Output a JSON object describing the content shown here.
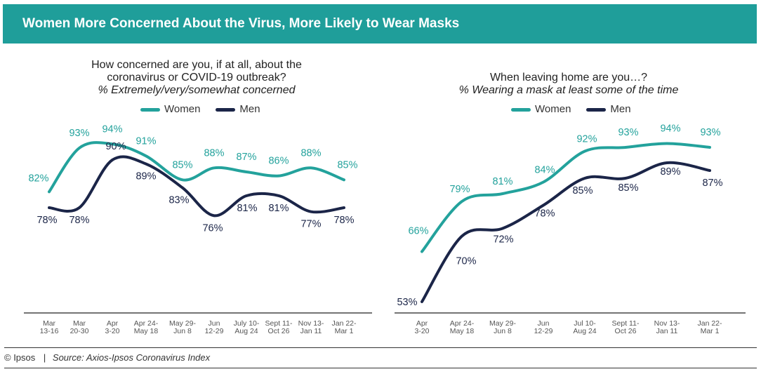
{
  "title": "Women More Concerned About the Virus, More Likely to Wear Masks",
  "footer": {
    "copyright": "© Ipsos",
    "separator": "|",
    "source": "Source: Axios-Ipsos Coronavirus Index"
  },
  "colors": {
    "women": "#23a29c",
    "men": "#1b2548",
    "banner": "#1f9e9a"
  },
  "chart_data": [
    {
      "type": "line",
      "title": "How concerned are you, if at all, about the coronavirus or COVID-19 outbreak?",
      "subtitle": "% Extremely/very/somewhat concerned",
      "title_line1": "How concerned are you, if at all, about the",
      "title_line2": "coronavirus or COVID-19 outbreak?",
      "categories": [
        "Mar 13-16",
        "Mar 20-30",
        "Apr 3-20",
        "Apr 24- May 18",
        "May 29- Jun 8",
        "Jun 12-29",
        "July 10- Aug 24",
        "Sept 11- Oct 26",
        "Nov 13- Jan 11",
        "Jan 22- Mar 1"
      ],
      "cat_lines": [
        [
          "Mar",
          "13-16"
        ],
        [
          "Mar",
          "20-30"
        ],
        [
          "Apr",
          "3-20"
        ],
        [
          "Apr 24-",
          "May 18"
        ],
        [
          "May 29-",
          "Jun 8"
        ],
        [
          "Jun",
          "12-29"
        ],
        [
          "July 10-",
          "Aug 24"
        ],
        [
          "Sept 11-",
          "Oct 26"
        ],
        [
          "Nov 13-",
          "Jan 11"
        ],
        [
          "Jan 22-",
          "Mar 1"
        ]
      ],
      "legend": "top",
      "unit": "%",
      "series": [
        {
          "name": "Women",
          "values": [
            82,
            93,
            94,
            91,
            85,
            88,
            87,
            86,
            88,
            85
          ]
        },
        {
          "name": "Men",
          "values": [
            78,
            78,
            90,
            89,
            83,
            76,
            81,
            81,
            77,
            78
          ]
        }
      ]
    },
    {
      "type": "line",
      "title": "When leaving home are you…?",
      "subtitle": "% Wearing a mask at least some of the time",
      "title_line1": "When leaving home are you…?",
      "title_line2": "",
      "categories": [
        "Apr 3-20",
        "Apr 24- May 18",
        "May 29- Jun 8",
        "Jun 12-29",
        "Jul 10- Aug 24",
        "Sept 11- Oct 26",
        "Nov 13- Jan 11",
        "Jan 22- Mar 1"
      ],
      "cat_lines": [
        [
          "Apr",
          "3-20"
        ],
        [
          "Apr 24-",
          "May 18"
        ],
        [
          "May 29-",
          "Jun 8"
        ],
        [
          "Jun",
          "12-29"
        ],
        [
          "Jul 10-",
          "Aug 24"
        ],
        [
          "Sept 11-",
          "Oct 26"
        ],
        [
          "Nov 13-",
          "Jan 11"
        ],
        [
          "Jan 22-",
          "Mar 1"
        ]
      ],
      "legend": "top",
      "unit": "%",
      "series": [
        {
          "name": "Women",
          "values": [
            66,
            79,
            81,
            84,
            92,
            93,
            94,
            93
          ]
        },
        {
          "name": "Men",
          "values": [
            53,
            70,
            72,
            78,
            85,
            85,
            89,
            87
          ]
        }
      ]
    }
  ]
}
